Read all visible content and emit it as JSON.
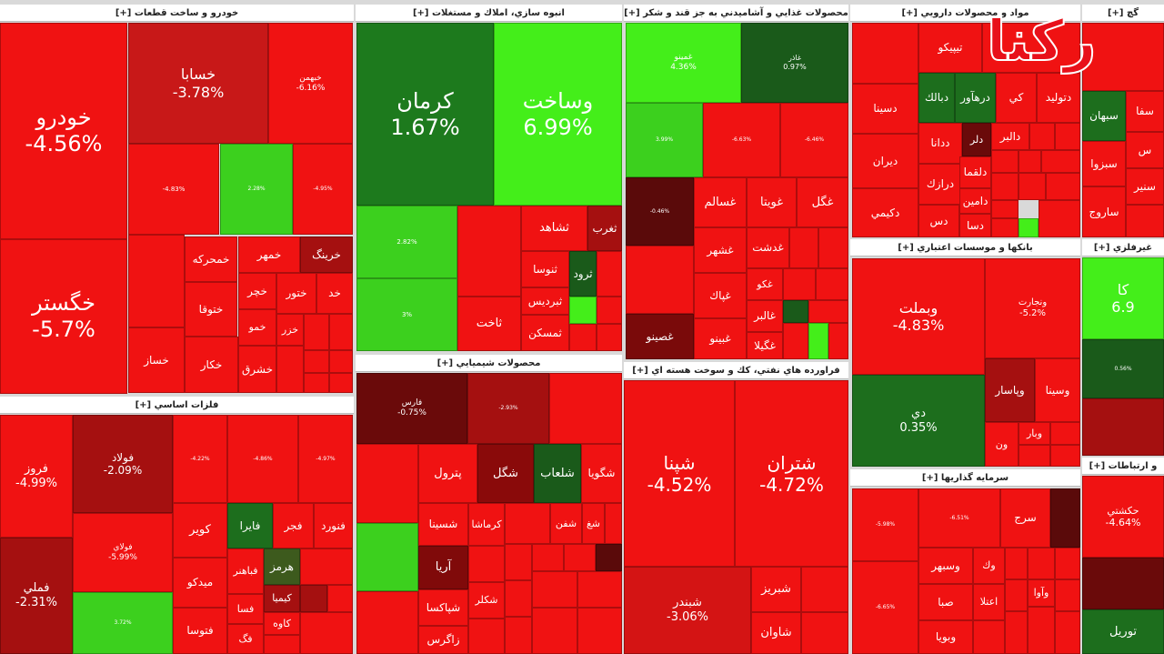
{
  "watermark": "رکنا",
  "sectors": [
    {
      "title": "خودرو و ساخت قطعات [+]",
      "tiles": [
        {
          "label": "خودرو",
          "change": "-4.56%"
        },
        {
          "label": "خگستر",
          "change": "-5.7%"
        },
        {
          "label": "خسابا",
          "change": "-3.78%"
        },
        {
          "label": "خبهمن",
          "change": "-6.16%"
        },
        {
          "change": "-4.83%"
        },
        {
          "change": "2.28%"
        },
        {
          "change": "-4.95%"
        },
        {
          "label": "خرينگ"
        },
        {
          "label": "خمحركه"
        },
        {
          "label": "خمهر"
        },
        {
          "label": "خچر"
        },
        {
          "label": "ختور"
        },
        {
          "label": "خد"
        },
        {
          "label": "ختوقا"
        },
        {
          "label": "خمو"
        },
        {
          "label": "خزر"
        },
        {
          "label": "خساز"
        },
        {
          "label": "خكار"
        },
        {
          "label": "خشرق"
        }
      ]
    },
    {
      "title": "فلزات اساسي [+]",
      "tiles": [
        {
          "label": "فروز",
          "change": "-4.99%"
        },
        {
          "label": "فملي",
          "change": "-2.31%"
        },
        {
          "label": "فولاد",
          "change": "-2.09%"
        },
        {
          "label": "فولاي",
          "change": "-5.99%"
        },
        {
          "change": "3.72%"
        },
        {
          "change": "-4.22%"
        },
        {
          "change": "-4.86%"
        },
        {
          "change": "-4.97%"
        },
        {
          "label": "كوير"
        },
        {
          "label": "فايرا"
        },
        {
          "label": "فجر"
        },
        {
          "label": "فنورد"
        },
        {
          "label": "فباهنر"
        },
        {
          "label": "هرمز"
        },
        {
          "label": "ميدكو"
        },
        {
          "label": "فتوسا"
        },
        {
          "label": "كيميا"
        },
        {
          "label": "كاوه"
        },
        {
          "label": "فسا"
        },
        {
          "label": "فگ"
        }
      ]
    },
    {
      "title": "انبوه سازي، املاك و مستغلات [+]",
      "tiles": [
        {
          "label": "كرمان",
          "change": "1.67%"
        },
        {
          "label": "وساخت",
          "change": "6.99%"
        },
        {
          "change": "2.82%"
        },
        {
          "change": "3%"
        },
        {
          "label": "ثاخت"
        },
        {
          "label": "ثشاهد"
        },
        {
          "label": "ثغرب"
        },
        {
          "label": "ثنوسا"
        },
        {
          "label": "ثرود"
        },
        {
          "label": "ثبرديس"
        },
        {
          "label": "ثمسكن"
        }
      ]
    },
    {
      "title": "محصولات شيميايي [+]",
      "tiles": [
        {
          "label": "فارس",
          "change": "-0.75%"
        },
        {
          "change": "-2.93%"
        },
        {
          "label": "پترول"
        },
        {
          "label": "شگل"
        },
        {
          "label": "شلعاب"
        },
        {
          "label": "شگويا"
        },
        {
          "label": "شسينا"
        },
        {
          "label": "كرماشا"
        },
        {
          "label": "آريا"
        },
        {
          "label": "شپاكسا"
        },
        {
          "label": "زاگرس"
        },
        {
          "label": "شكلر"
        },
        {
          "label": "شفن"
        },
        {
          "label": "شغ"
        }
      ]
    },
    {
      "title": "محصولات غذايي و آشاميدني به جز قند و شكر [+]",
      "tiles": [
        {
          "label": "غمينو",
          "change": "4.36%"
        },
        {
          "label": "غاذر",
          "change": "0.97%"
        },
        {
          "change": "3.99%"
        },
        {
          "change": "-6.63%"
        },
        {
          "change": "-6.46%"
        },
        {
          "change": "-0.46%"
        },
        {
          "label": "غسالم"
        },
        {
          "label": "غويتا"
        },
        {
          "label": "غگل"
        },
        {
          "label": "غشهر"
        },
        {
          "label": "غدشت"
        },
        {
          "label": "غپاك"
        },
        {
          "label": "غالبر"
        },
        {
          "label": "غصينو"
        },
        {
          "label": "غبينو"
        },
        {
          "label": "غگيلا"
        },
        {
          "label": "غكو"
        }
      ]
    },
    {
      "title": "فراورده هاي نفتي، كك و سوخت هسته اي [+]",
      "tiles": [
        {
          "label": "شپنا",
          "change": "-4.52%"
        },
        {
          "label": "شتران",
          "change": "-4.72%"
        },
        {
          "label": "شبندر",
          "change": "-3.06%"
        },
        {
          "label": "شبريز"
        },
        {
          "label": "شاوان"
        }
      ]
    },
    {
      "title": "مواد و محصولات دارويي [+]",
      "tiles": [
        {
          "label": "تيپيكو"
        },
        {
          "label": "دتوليد"
        },
        {
          "label": "دبالك"
        },
        {
          "label": "درهآور"
        },
        {
          "label": "دسينا"
        },
        {
          "label": "ديران"
        },
        {
          "label": "دكيمي"
        },
        {
          "label": "دلر"
        },
        {
          "label": "ددانا"
        },
        {
          "label": "دالبر"
        },
        {
          "label": "درازك"
        },
        {
          "label": "دلقما"
        },
        {
          "label": "دامين"
        },
        {
          "label": "دس"
        },
        {
          "label": "دسا"
        },
        {
          "label": "كي"
        }
      ]
    },
    {
      "title": "بانكها و موسسات اعتباري [+]",
      "tiles": [
        {
          "label": "وبملت",
          "change": "-4.83%"
        },
        {
          "label": "ونجارت",
          "change": "-5.2%"
        },
        {
          "label": "دي",
          "change": "0.35%"
        },
        {
          "label": "وپاسار"
        },
        {
          "label": "وسينا"
        },
        {
          "label": "ون"
        },
        {
          "label": "وبار"
        }
      ]
    },
    {
      "title": "سرمايه گذاريها [+]",
      "tiles": [
        {
          "change": "-5.98%"
        },
        {
          "change": "-6.51%"
        },
        {
          "label": "سرج"
        },
        {
          "label": "وسبهر"
        },
        {
          "label": "وك"
        },
        {
          "label": "صبا"
        },
        {
          "label": "اعتلا"
        },
        {
          "label": "وبويا"
        },
        {
          "label": "وآوا"
        },
        {
          "change": "-6.65%"
        }
      ]
    },
    {
      "title": "گچ [+]",
      "tiles": [
        {
          "label": "سبهان"
        },
        {
          "label": "سفا"
        },
        {
          "label": "سبزوا"
        },
        {
          "label": "سنير"
        },
        {
          "label": "ساروج"
        },
        {
          "label": "س"
        }
      ]
    },
    {
      "title": "غيرفلزي [+]",
      "tiles": [
        {
          "label": "كا",
          "change": "6.9"
        },
        {
          "change": "0.56%"
        }
      ]
    },
    {
      "title": "و ارتباطات [+]",
      "tiles": [
        {
          "label": "حكشتي",
          "change": "-4.64%"
        },
        {
          "label": "توريل"
        }
      ]
    }
  ]
}
